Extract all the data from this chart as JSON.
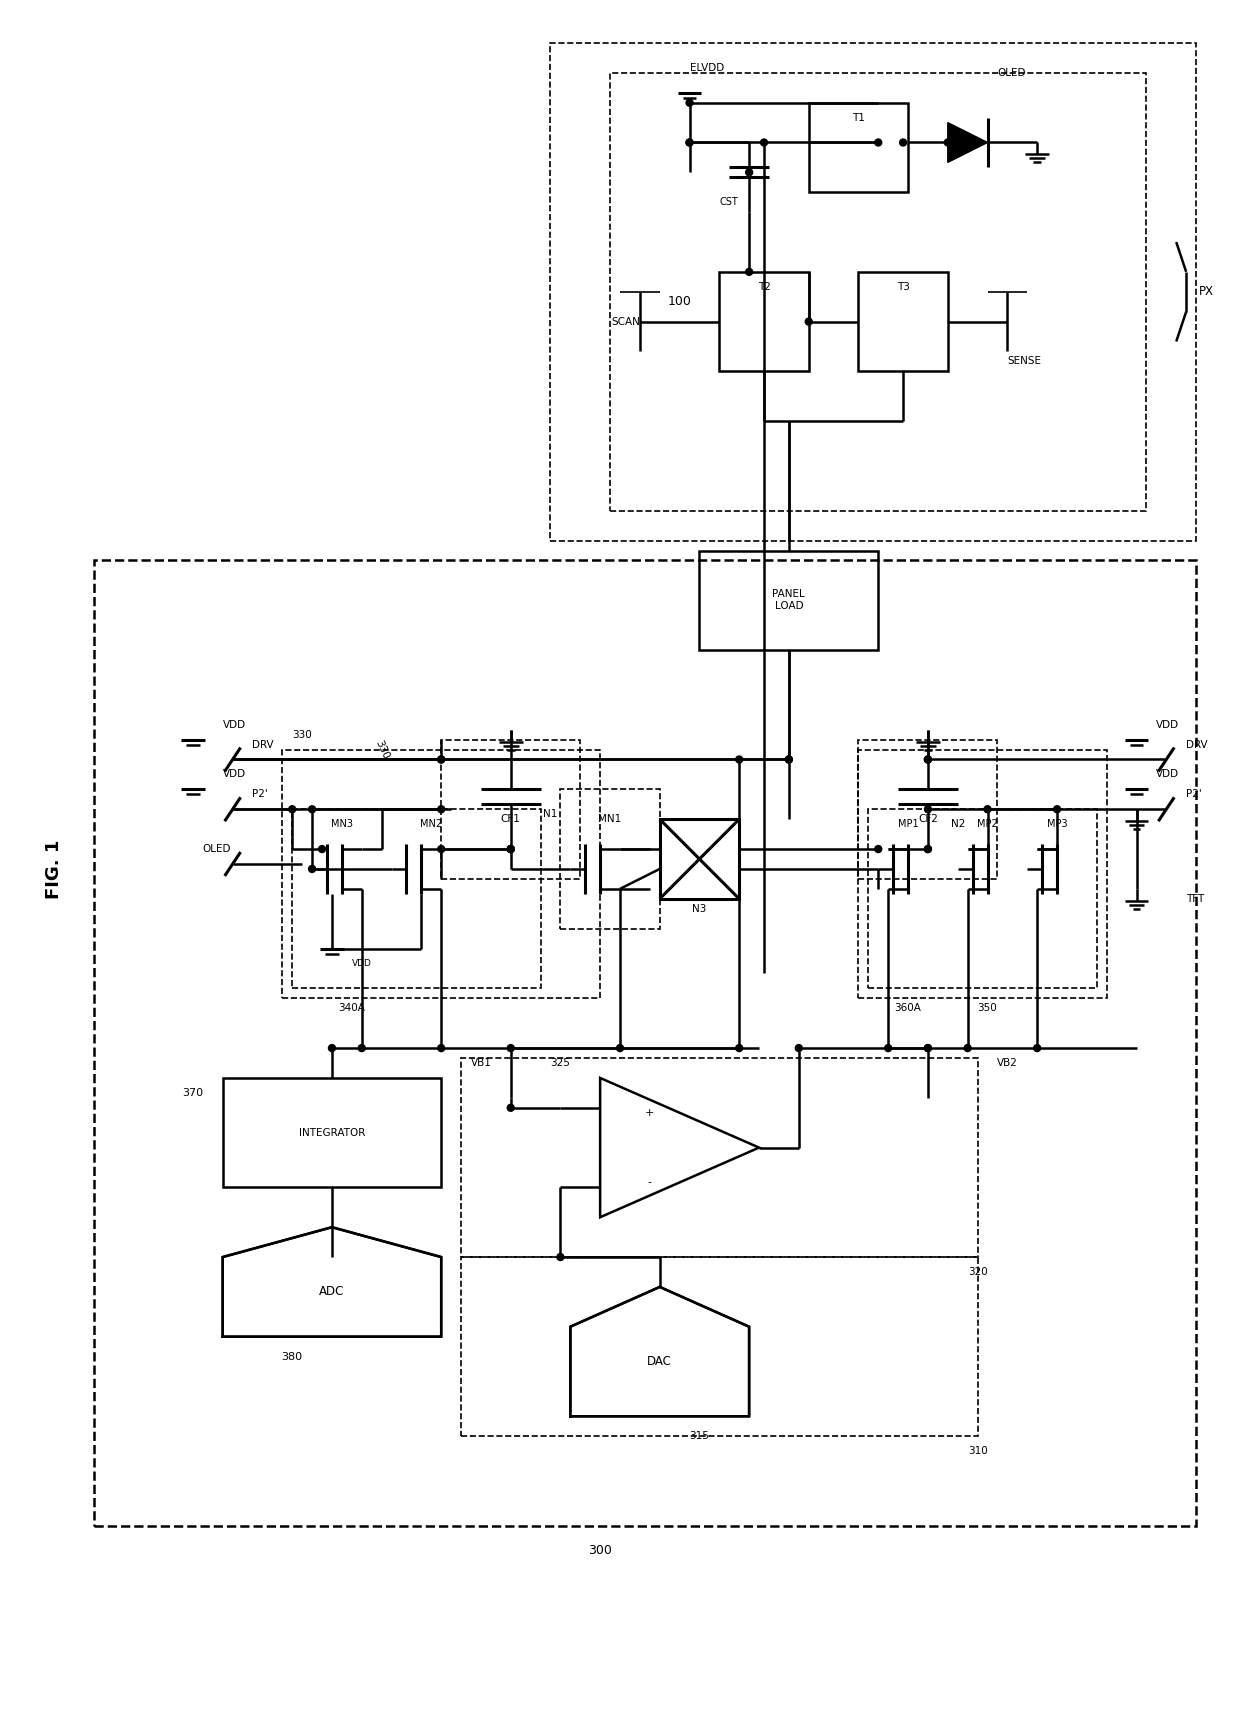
{
  "bg_color": "#ffffff",
  "fig_width": 12.4,
  "fig_height": 17.19,
  "fig_title": "FIG. 1",
  "label_100": "100",
  "label_300": "300",
  "label_310": "310",
  "label_315": "315",
  "label_320": "320",
  "label_325": "325",
  "label_330": "330",
  "label_340a": "340A",
  "label_350": "350",
  "label_360a": "360A",
  "label_370": "370",
  "label_380": "380",
  "px": "PX",
  "oled": "OLED",
  "elvdd": "ELVDD",
  "scan": "SCAN",
  "sense": "SENSE",
  "cst": "CST",
  "t1": "T1",
  "t2": "T2",
  "t3": "T3",
  "panel_load": "PANEL\nLOAD",
  "vdd": "VDD",
  "drv": "DRV",
  "p2prime": "P2'",
  "oled_label": "OLED",
  "mn3": "MN3",
  "mn2": "MN2",
  "mn1": "MN1",
  "n1": "N1",
  "n3": "N3",
  "cf1": "CF1",
  "cf2": "CF2",
  "mp1": "MP1",
  "mp2": "MP2",
  "mp3": "MP3",
  "n2": "N2",
  "tft": "TFT",
  "vb1": "VB1",
  "vb2": "VB2",
  "vdd_inner": "VDD",
  "integrator": "INTEGRATOR",
  "adc": "ADC",
  "dac": "DAC",
  "plus": "+",
  "minus": "-"
}
